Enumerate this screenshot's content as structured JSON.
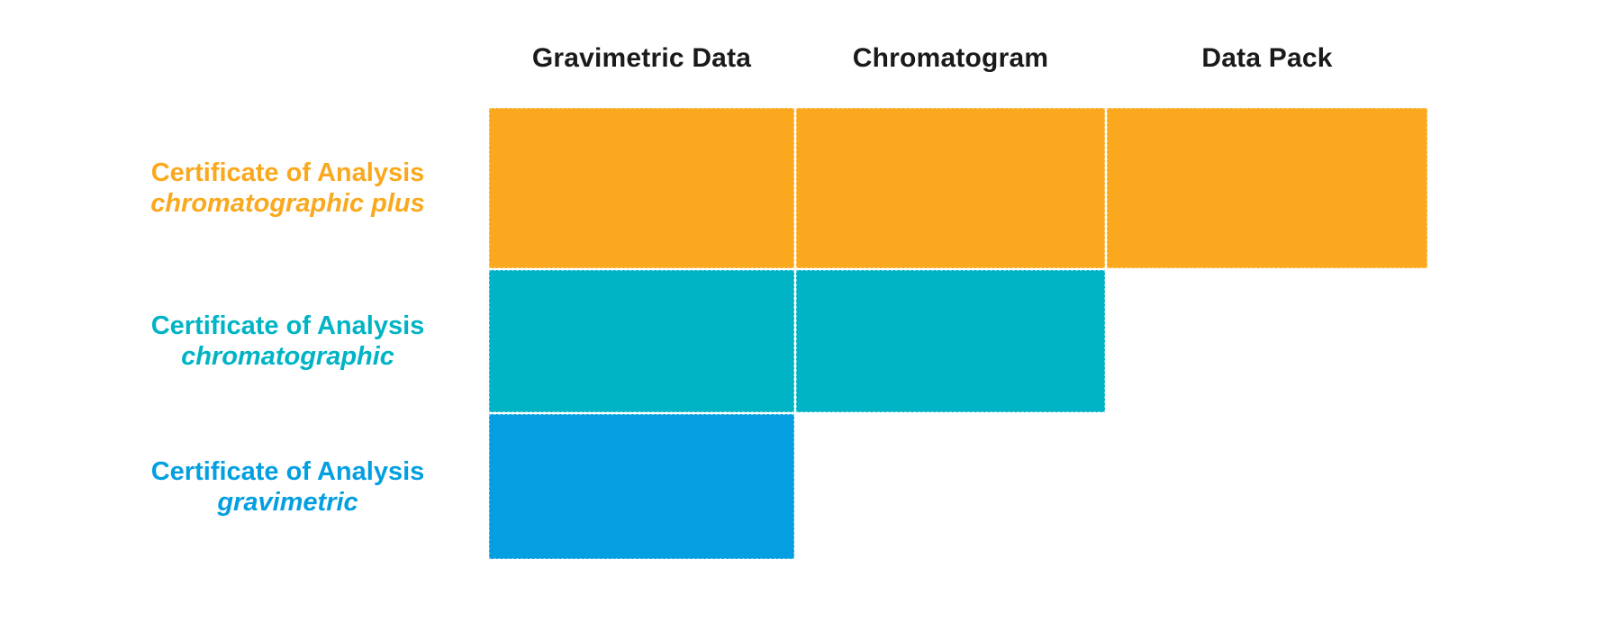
{
  "matrix": {
    "columns": [
      {
        "label": "Gravimetric Data"
      },
      {
        "label": "Chromatogram"
      },
      {
        "label": "Data Pack"
      }
    ],
    "rows": [
      {
        "title": "Certificate of Analysis",
        "subtitle": "chromatographic plus",
        "color": "#FAA91E",
        "cells": [
          true,
          true,
          true
        ]
      },
      {
        "title": "Certificate of Analysis",
        "subtitle": "chromatographic",
        "color": "#00B4C5",
        "cells": [
          true,
          true,
          false
        ]
      },
      {
        "title": "Certificate of Analysis",
        "subtitle": "gravimetric",
        "color": "#049FE0",
        "cells": [
          true,
          false,
          false
        ]
      }
    ],
    "colors": {
      "header_text": "#1A1A1A",
      "background": "#FFFFFF"
    }
  }
}
